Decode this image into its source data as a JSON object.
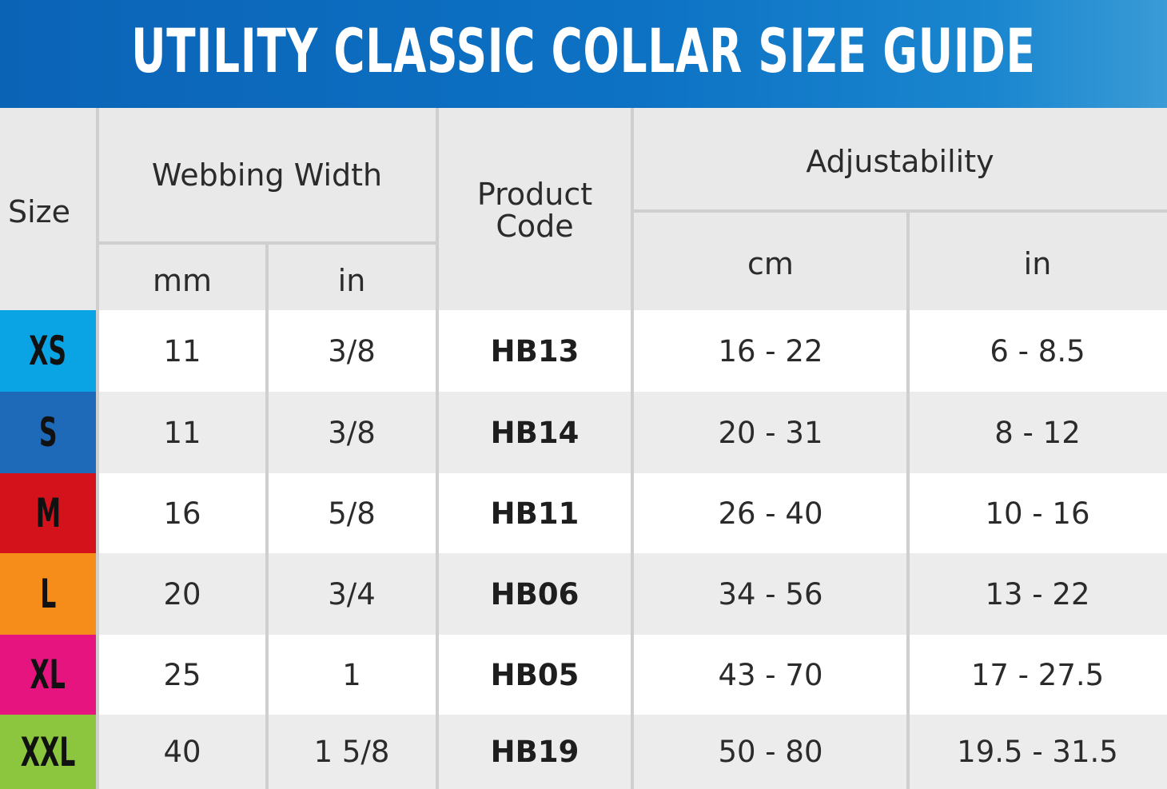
{
  "title": "UTILITY CLASSIC COLLAR SIZE GUIDE",
  "headers": {
    "size": "Size",
    "webbing_width": "Webbing Width",
    "webbing_mm": "mm",
    "webbing_in": "in",
    "product_code_line1": "Product",
    "product_code_line2": "Code",
    "adjustability": "Adjustability",
    "adjust_cm": "cm",
    "adjust_in": "in"
  },
  "colors": {
    "title_bar": "#0d6ec2",
    "XS": "#0aa3e3",
    "S": "#1f6ab8",
    "M": "#d3121b",
    "L": "#f68c1a",
    "XL": "#e5147f",
    "XXL": "#8cc63f"
  },
  "rows": [
    {
      "size": "XS",
      "mm": "11",
      "in": "3/8",
      "code": "HB13",
      "cm_range": "16 - 22",
      "in_range": "6 - 8.5"
    },
    {
      "size": "S",
      "mm": "11",
      "in": "3/8",
      "code": "HB14",
      "cm_range": "20 - 31",
      "in_range": "8 - 12"
    },
    {
      "size": "M",
      "mm": "16",
      "in": "5/8",
      "code": "HB11",
      "cm_range": "26 - 40",
      "in_range": "10 - 16"
    },
    {
      "size": "L",
      "mm": "20",
      "in": "3/4",
      "code": "HB06",
      "cm_range": "34 - 56",
      "in_range": "13 - 22"
    },
    {
      "size": "XL",
      "mm": "25",
      "in": "1",
      "code": "HB05",
      "cm_range": "43 - 70",
      "in_range": "17 - 27.5"
    },
    {
      "size": "XXL",
      "mm": "40",
      "in": "1 5/8",
      "code": "HB19",
      "cm_range": "50 - 80",
      "in_range": "19.5 - 31.5"
    }
  ]
}
